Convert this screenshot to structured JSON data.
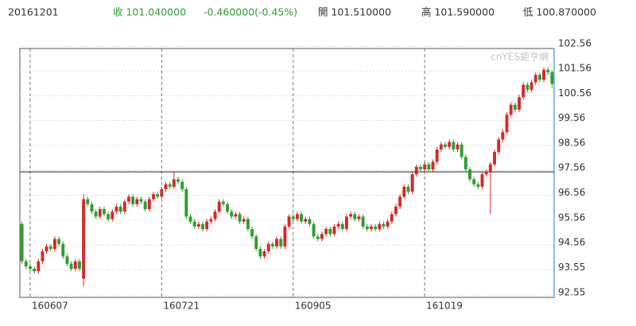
{
  "chart_data": {
    "type": "candlestick",
    "header": {
      "date": "20161201",
      "close": "收 101.040000",
      "change": "-0.460000(-0.45%)",
      "open": "開 101.510000",
      "high": "高 101.590000",
      "low": "低 100.870000"
    },
    "watermark": "cnYES鉅亨網",
    "up_color": "#d42a2a",
    "down_color": "#2f9e2f",
    "header_color": "#2f9e2f",
    "ref_line": 97.5,
    "grid": true,
    "ylim": [
      92.45,
      102.46
    ],
    "yticks": [
      92.55,
      93.55,
      94.56,
      95.56,
      96.56,
      97.56,
      98.56,
      99.56,
      100.56,
      101.56,
      102.56
    ],
    "categories": [
      null,
      null,
      "160607",
      null,
      null,
      null,
      null,
      null,
      null,
      null,
      null,
      null,
      null,
      null,
      null,
      null,
      null,
      null,
      null,
      null,
      null,
      null,
      null,
      null,
      null,
      null,
      null,
      null,
      null,
      null,
      null,
      null,
      null,
      null,
      "160721",
      null,
      null,
      null,
      null,
      null,
      null,
      null,
      null,
      null,
      null,
      null,
      null,
      null,
      null,
      null,
      null,
      null,
      null,
      null,
      null,
      null,
      null,
      null,
      null,
      null,
      null,
      null,
      null,
      null,
      null,
      null,
      "160905",
      null,
      null,
      null,
      null,
      null,
      null,
      null,
      null,
      null,
      null,
      null,
      null,
      null,
      null,
      null,
      null,
      null,
      null,
      null,
      null,
      null,
      null,
      null,
      null,
      null,
      null,
      null,
      null,
      null,
      null,
      null,
      "161019",
      null,
      null,
      null,
      null,
      null,
      null,
      null,
      null,
      null,
      null,
      null,
      null,
      null,
      null,
      null,
      null,
      null,
      null,
      null,
      null,
      null,
      null,
      null,
      null,
      null,
      null,
      null,
      null,
      null,
      null,
      null
    ],
    "open": [
      95.4,
      93.9,
      93.7,
      93.6,
      93.5,
      93.9,
      94.3,
      94.5,
      94.4,
      94.8,
      94.6,
      94.1,
      93.8,
      93.6,
      93.9,
      93.2,
      96.4,
      96.2,
      95.9,
      95.7,
      96.0,
      95.8,
      95.6,
      95.9,
      96.1,
      95.9,
      96.3,
      96.5,
      96.2,
      96.4,
      96.3,
      96.0,
      96.4,
      96.6,
      96.5,
      96.8,
      97.0,
      96.9,
      97.2,
      97.1,
      96.8,
      95.7,
      95.5,
      95.3,
      95.4,
      95.2,
      95.5,
      95.6,
      95.9,
      96.3,
      96.2,
      95.9,
      95.7,
      95.8,
      95.5,
      95.6,
      95.2,
      94.9,
      94.4,
      94.1,
      94.3,
      94.6,
      94.5,
      94.8,
      94.5,
      95.3,
      95.7,
      95.6,
      95.8,
      95.5,
      95.6,
      95.4,
      94.9,
      94.8,
      95.0,
      95.2,
      95.0,
      95.3,
      95.4,
      95.2,
      95.7,
      95.8,
      95.6,
      95.7,
      95.3,
      95.2,
      95.3,
      95.2,
      95.4,
      95.3,
      95.5,
      95.8,
      96.1,
      96.5,
      96.9,
      96.7,
      97.4,
      97.7,
      97.6,
      97.8,
      97.6,
      97.9,
      98.4,
      98.6,
      98.5,
      98.7,
      98.4,
      98.6,
      98.1,
      97.6,
      97.2,
      97.0,
      96.9,
      97.4,
      97.5,
      97.8,
      98.3,
      98.8,
      99.1,
      99.8,
      100.2,
      100.0,
      100.5,
      101.0,
      100.8,
      101.1,
      101.4,
      101.2,
      101.6,
      101.51
    ],
    "high": [
      95.5,
      94.0,
      93.8,
      93.7,
      94.0,
      94.4,
      94.6,
      94.6,
      94.9,
      94.9,
      94.7,
      94.2,
      93.9,
      94.0,
      94.0,
      96.6,
      96.5,
      96.3,
      96.0,
      96.1,
      96.1,
      95.9,
      96.0,
      96.2,
      96.2,
      96.4,
      96.6,
      96.6,
      96.5,
      96.5,
      96.4,
      96.5,
      96.7,
      96.7,
      96.9,
      97.1,
      97.1,
      97.5,
      97.3,
      97.2,
      96.9,
      95.8,
      95.6,
      95.5,
      95.5,
      95.6,
      95.7,
      96.0,
      96.4,
      96.4,
      96.3,
      96.0,
      95.9,
      95.9,
      95.7,
      95.7,
      95.3,
      95.0,
      94.5,
      94.4,
      94.7,
      94.7,
      94.9,
      94.9,
      95.4,
      95.8,
      95.8,
      95.9,
      95.9,
      95.7,
      95.7,
      95.5,
      95.0,
      95.1,
      95.3,
      95.3,
      95.4,
      95.5,
      95.5,
      95.8,
      95.9,
      95.9,
      95.8,
      95.8,
      95.4,
      95.4,
      95.4,
      95.5,
      95.5,
      95.6,
      95.9,
      96.2,
      96.6,
      97.0,
      97.0,
      97.5,
      97.8,
      97.8,
      97.9,
      97.9,
      98.0,
      98.5,
      98.7,
      98.7,
      98.8,
      98.8,
      98.7,
      98.7,
      98.2,
      97.7,
      97.3,
      97.1,
      97.5,
      97.6,
      97.9,
      98.4,
      98.9,
      99.2,
      99.9,
      100.3,
      100.3,
      100.6,
      101.1,
      101.1,
      101.2,
      101.5,
      101.5,
      101.7,
      101.7,
      101.59
    ],
    "low": [
      93.8,
      93.6,
      93.5,
      93.4,
      93.4,
      93.8,
      94.2,
      94.3,
      94.3,
      94.5,
      94.0,
      93.7,
      93.5,
      93.5,
      93.5,
      92.9,
      96.1,
      95.8,
      95.6,
      95.6,
      95.7,
      95.5,
      95.5,
      95.8,
      95.8,
      95.8,
      96.2,
      96.1,
      96.1,
      96.2,
      95.9,
      95.9,
      96.3,
      96.4,
      96.4,
      96.7,
      96.8,
      96.8,
      97.0,
      96.7,
      95.6,
      95.4,
      95.2,
      95.2,
      95.1,
      95.1,
      95.4,
      95.5,
      95.8,
      96.1,
      95.8,
      95.6,
      95.6,
      95.4,
      95.4,
      95.1,
      94.8,
      94.3,
      94.0,
      94.0,
      94.2,
      94.4,
      94.4,
      94.4,
      94.4,
      95.2,
      95.5,
      95.5,
      95.4,
      95.4,
      95.3,
      94.8,
      94.7,
      94.7,
      94.9,
      94.9,
      94.9,
      95.2,
      95.1,
      95.1,
      95.6,
      95.5,
      95.5,
      95.2,
      95.1,
      95.1,
      95.1,
      95.1,
      95.2,
      95.2,
      95.4,
      95.7,
      96.0,
      96.4,
      96.6,
      96.6,
      97.3,
      97.5,
      97.5,
      97.5,
      97.5,
      97.8,
      98.3,
      98.4,
      98.4,
      98.3,
      98.3,
      98.0,
      97.5,
      97.1,
      96.9,
      96.8,
      96.8,
      97.3,
      95.8,
      97.7,
      98.2,
      98.7,
      99.0,
      99.7,
      99.9,
      99.9,
      100.4,
      100.7,
      100.7,
      101.0,
      101.1,
      101.1,
      101.4,
      100.87
    ],
    "close": [
      93.9,
      93.7,
      93.6,
      93.5,
      93.9,
      94.3,
      94.5,
      94.4,
      94.8,
      94.6,
      94.1,
      93.8,
      93.6,
      93.9,
      93.6,
      96.4,
      96.2,
      95.9,
      95.7,
      96.0,
      95.8,
      95.6,
      95.9,
      96.1,
      95.9,
      96.3,
      96.5,
      96.2,
      96.4,
      96.3,
      96.0,
      96.4,
      96.6,
      96.5,
      96.8,
      97.0,
      96.9,
      97.2,
      97.1,
      96.8,
      95.7,
      95.5,
      95.3,
      95.4,
      95.2,
      95.5,
      95.6,
      95.9,
      96.3,
      96.2,
      95.9,
      95.7,
      95.8,
      95.5,
      95.6,
      95.2,
      94.9,
      94.4,
      94.1,
      94.3,
      94.6,
      94.5,
      94.8,
      94.5,
      95.3,
      95.7,
      95.6,
      95.8,
      95.5,
      95.6,
      95.4,
      94.9,
      94.8,
      95.0,
      95.2,
      95.0,
      95.3,
      95.4,
      95.2,
      95.7,
      95.8,
      95.6,
      95.7,
      95.3,
      95.2,
      95.3,
      95.2,
      95.4,
      95.3,
      95.5,
      95.8,
      96.1,
      96.5,
      96.9,
      96.7,
      97.4,
      97.7,
      97.6,
      97.8,
      97.6,
      97.9,
      98.4,
      98.6,
      98.5,
      98.7,
      98.4,
      98.6,
      98.1,
      97.6,
      97.2,
      97.0,
      96.9,
      97.4,
      97.5,
      97.8,
      98.3,
      98.8,
      99.1,
      99.8,
      100.2,
      100.0,
      100.5,
      101.0,
      100.8,
      101.1,
      101.4,
      101.2,
      101.6,
      101.5,
      101.04
    ]
  }
}
